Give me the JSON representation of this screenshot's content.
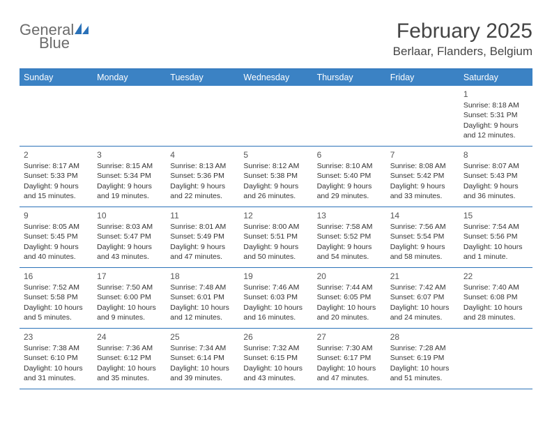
{
  "brand": {
    "word1": "General",
    "word2": "Blue"
  },
  "title": "February 2025",
  "location": "Berlaar, Flanders, Belgium",
  "colors": {
    "header_bg": "#3b82c4",
    "rule": "#2a71b8",
    "text": "#333333",
    "title_text": "#444444",
    "logo_gray": "#6b6b6b",
    "logo_blue": "#2a71b8"
  },
  "weekdays": [
    "Sunday",
    "Monday",
    "Tuesday",
    "Wednesday",
    "Thursday",
    "Friday",
    "Saturday"
  ],
  "weeks": [
    [
      null,
      null,
      null,
      null,
      null,
      null,
      {
        "n": "1",
        "sr": "Sunrise: 8:18 AM",
        "ss": "Sunset: 5:31 PM",
        "d1": "Daylight: 9 hours",
        "d2": "and 12 minutes."
      }
    ],
    [
      {
        "n": "2",
        "sr": "Sunrise: 8:17 AM",
        "ss": "Sunset: 5:33 PM",
        "d1": "Daylight: 9 hours",
        "d2": "and 15 minutes."
      },
      {
        "n": "3",
        "sr": "Sunrise: 8:15 AM",
        "ss": "Sunset: 5:34 PM",
        "d1": "Daylight: 9 hours",
        "d2": "and 19 minutes."
      },
      {
        "n": "4",
        "sr": "Sunrise: 8:13 AM",
        "ss": "Sunset: 5:36 PM",
        "d1": "Daylight: 9 hours",
        "d2": "and 22 minutes."
      },
      {
        "n": "5",
        "sr": "Sunrise: 8:12 AM",
        "ss": "Sunset: 5:38 PM",
        "d1": "Daylight: 9 hours",
        "d2": "and 26 minutes."
      },
      {
        "n": "6",
        "sr": "Sunrise: 8:10 AM",
        "ss": "Sunset: 5:40 PM",
        "d1": "Daylight: 9 hours",
        "d2": "and 29 minutes."
      },
      {
        "n": "7",
        "sr": "Sunrise: 8:08 AM",
        "ss": "Sunset: 5:42 PM",
        "d1": "Daylight: 9 hours",
        "d2": "and 33 minutes."
      },
      {
        "n": "8",
        "sr": "Sunrise: 8:07 AM",
        "ss": "Sunset: 5:43 PM",
        "d1": "Daylight: 9 hours",
        "d2": "and 36 minutes."
      }
    ],
    [
      {
        "n": "9",
        "sr": "Sunrise: 8:05 AM",
        "ss": "Sunset: 5:45 PM",
        "d1": "Daylight: 9 hours",
        "d2": "and 40 minutes."
      },
      {
        "n": "10",
        "sr": "Sunrise: 8:03 AM",
        "ss": "Sunset: 5:47 PM",
        "d1": "Daylight: 9 hours",
        "d2": "and 43 minutes."
      },
      {
        "n": "11",
        "sr": "Sunrise: 8:01 AM",
        "ss": "Sunset: 5:49 PM",
        "d1": "Daylight: 9 hours",
        "d2": "and 47 minutes."
      },
      {
        "n": "12",
        "sr": "Sunrise: 8:00 AM",
        "ss": "Sunset: 5:51 PM",
        "d1": "Daylight: 9 hours",
        "d2": "and 50 minutes."
      },
      {
        "n": "13",
        "sr": "Sunrise: 7:58 AM",
        "ss": "Sunset: 5:52 PM",
        "d1": "Daylight: 9 hours",
        "d2": "and 54 minutes."
      },
      {
        "n": "14",
        "sr": "Sunrise: 7:56 AM",
        "ss": "Sunset: 5:54 PM",
        "d1": "Daylight: 9 hours",
        "d2": "and 58 minutes."
      },
      {
        "n": "15",
        "sr": "Sunrise: 7:54 AM",
        "ss": "Sunset: 5:56 PM",
        "d1": "Daylight: 10 hours",
        "d2": "and 1 minute."
      }
    ],
    [
      {
        "n": "16",
        "sr": "Sunrise: 7:52 AM",
        "ss": "Sunset: 5:58 PM",
        "d1": "Daylight: 10 hours",
        "d2": "and 5 minutes."
      },
      {
        "n": "17",
        "sr": "Sunrise: 7:50 AM",
        "ss": "Sunset: 6:00 PM",
        "d1": "Daylight: 10 hours",
        "d2": "and 9 minutes."
      },
      {
        "n": "18",
        "sr": "Sunrise: 7:48 AM",
        "ss": "Sunset: 6:01 PM",
        "d1": "Daylight: 10 hours",
        "d2": "and 12 minutes."
      },
      {
        "n": "19",
        "sr": "Sunrise: 7:46 AM",
        "ss": "Sunset: 6:03 PM",
        "d1": "Daylight: 10 hours",
        "d2": "and 16 minutes."
      },
      {
        "n": "20",
        "sr": "Sunrise: 7:44 AM",
        "ss": "Sunset: 6:05 PM",
        "d1": "Daylight: 10 hours",
        "d2": "and 20 minutes."
      },
      {
        "n": "21",
        "sr": "Sunrise: 7:42 AM",
        "ss": "Sunset: 6:07 PM",
        "d1": "Daylight: 10 hours",
        "d2": "and 24 minutes."
      },
      {
        "n": "22",
        "sr": "Sunrise: 7:40 AM",
        "ss": "Sunset: 6:08 PM",
        "d1": "Daylight: 10 hours",
        "d2": "and 28 minutes."
      }
    ],
    [
      {
        "n": "23",
        "sr": "Sunrise: 7:38 AM",
        "ss": "Sunset: 6:10 PM",
        "d1": "Daylight: 10 hours",
        "d2": "and 31 minutes."
      },
      {
        "n": "24",
        "sr": "Sunrise: 7:36 AM",
        "ss": "Sunset: 6:12 PM",
        "d1": "Daylight: 10 hours",
        "d2": "and 35 minutes."
      },
      {
        "n": "25",
        "sr": "Sunrise: 7:34 AM",
        "ss": "Sunset: 6:14 PM",
        "d1": "Daylight: 10 hours",
        "d2": "and 39 minutes."
      },
      {
        "n": "26",
        "sr": "Sunrise: 7:32 AM",
        "ss": "Sunset: 6:15 PM",
        "d1": "Daylight: 10 hours",
        "d2": "and 43 minutes."
      },
      {
        "n": "27",
        "sr": "Sunrise: 7:30 AM",
        "ss": "Sunset: 6:17 PM",
        "d1": "Daylight: 10 hours",
        "d2": "and 47 minutes."
      },
      {
        "n": "28",
        "sr": "Sunrise: 7:28 AM",
        "ss": "Sunset: 6:19 PM",
        "d1": "Daylight: 10 hours",
        "d2": "and 51 minutes."
      },
      null
    ]
  ]
}
